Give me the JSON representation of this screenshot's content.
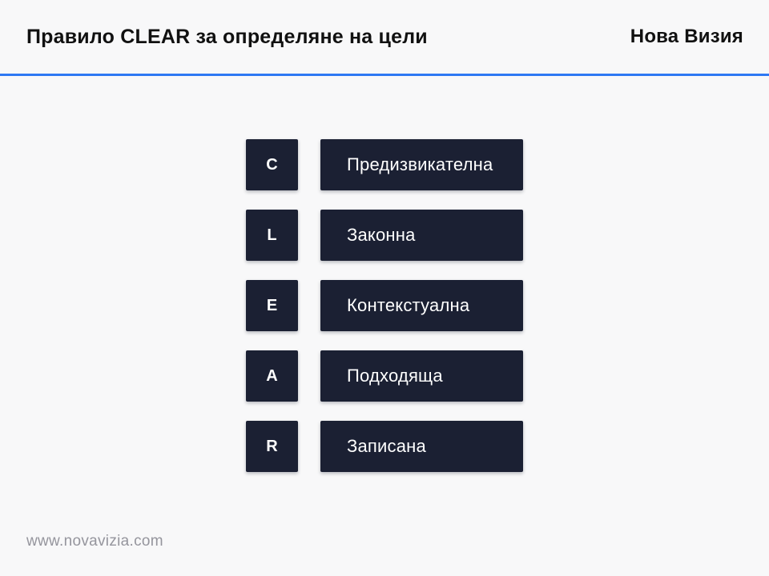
{
  "header": {
    "title": "Правило CLEAR за определяне на цели",
    "brand": "Нова Визия"
  },
  "rows": [
    {
      "letter": "C",
      "label": "Предизвикателна"
    },
    {
      "letter": "L",
      "label": "Законна"
    },
    {
      "letter": "E",
      "label": "Контекстуална"
    },
    {
      "letter": "A",
      "label": "Подходяща"
    },
    {
      "letter": "R",
      "label": "Записана"
    }
  ],
  "footer": {
    "url": "www.novavizia.com"
  },
  "colors": {
    "accent_blue": "#2e78f3",
    "dark_navy": "#1b2033",
    "background": "#f8f8f9",
    "footer_gray": "#95959d",
    "title_ink": "#111111"
  }
}
